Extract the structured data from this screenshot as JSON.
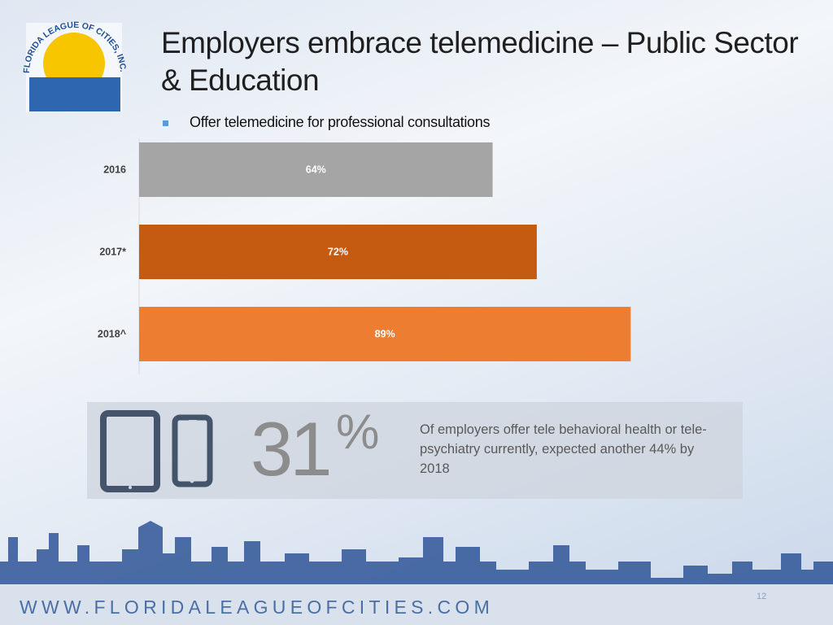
{
  "logo": {
    "text": "FLORIDA LEAGUE OF CITIES, INC."
  },
  "chart_data": {
    "type": "hbar",
    "title": "Employers embrace telemedicine – Public Sector & Education",
    "categories": [
      "2016",
      "2017*",
      "2018^"
    ],
    "series": [
      {
        "name": "Offer telemedicine for professional consultations",
        "color": "#5b9bd5",
        "values": [
          64,
          72,
          89
        ],
        "value_labels": [
          "64%",
          "72%",
          "89%"
        ],
        "bar_colors": [
          "#a5a5a5",
          "#c55a11",
          "#ed7d31"
        ]
      }
    ]
  },
  "stat": {
    "number": "31",
    "unit": "%",
    "text": "Of employers offer tele behavioral health or tele-psychiatry currently, expected another 44% by 2018"
  },
  "footer": {
    "url": "WWW.FLORIDALEAGUEOFCITIES.COM",
    "page": "12"
  }
}
